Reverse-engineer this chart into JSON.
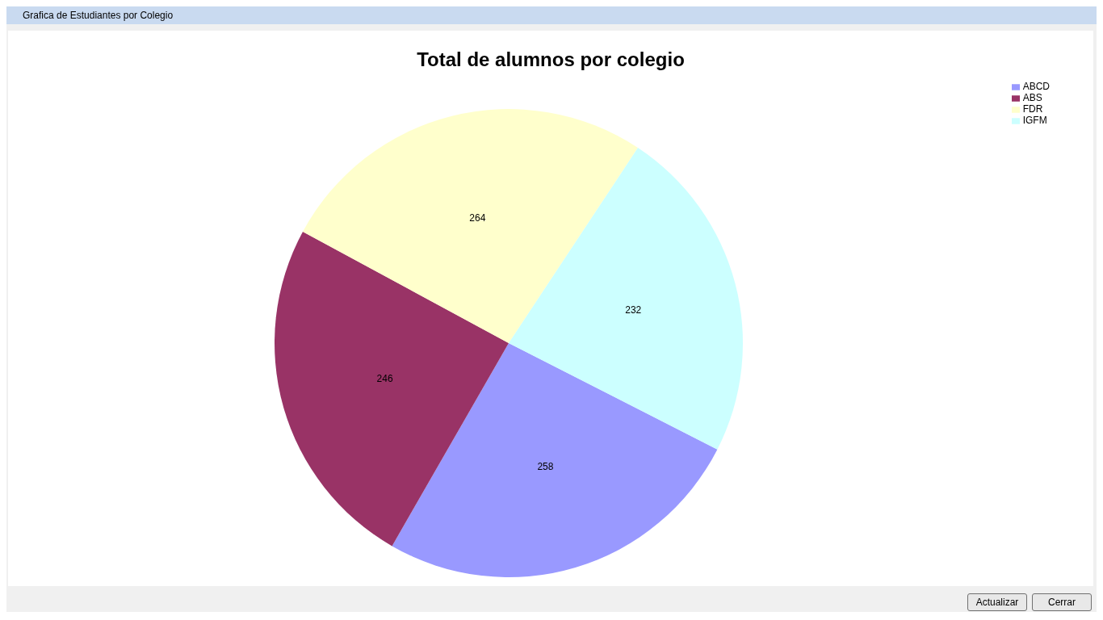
{
  "chart_data": {
    "type": "pie",
    "title": "Total de alumnos por colegio",
    "categories": [
      "ABCD",
      "ABS",
      "FDR",
      "IGFM"
    ],
    "values": [
      258,
      246,
      264,
      232
    ],
    "colors": [
      "#9999ff",
      "#993366",
      "#ffffcc",
      "#ccffff"
    ],
    "data_labels": true,
    "legend": "top right",
    "annotations": [
      "Grafica de Estudiantes por Colegio",
      "Actualizar",
      "Cerrar"
    ]
  }
}
